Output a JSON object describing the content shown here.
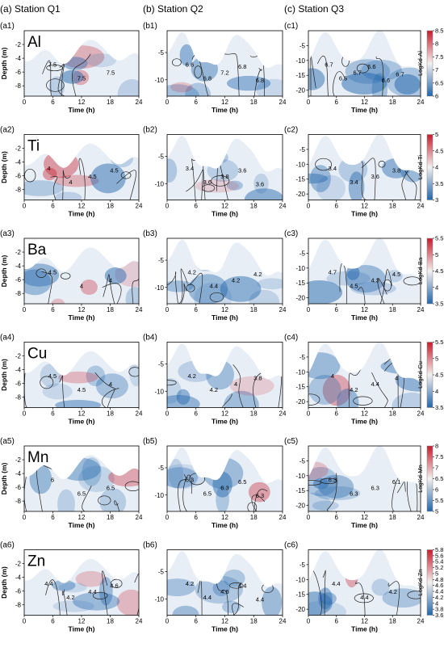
{
  "chart_data": {
    "type": "heatmap",
    "description_of_layout": "6 rows (elements) x 3 columns (stations) of depth-time contour plots",
    "stations": [
      {
        "title": "(a) Station Q1",
        "xlim": [
          0,
          24
        ],
        "ylim": [
          -9.5,
          0
        ],
        "yticks": [
          -2,
          -4,
          -6,
          -8
        ]
      },
      {
        "title": "(b) Station Q2",
        "xlim": [
          0,
          24
        ],
        "ylim": [
          -13,
          -1
        ],
        "yticks": [
          -5,
          -10
        ]
      },
      {
        "title": "(c) Station Q3",
        "xlim": [
          0,
          24
        ],
        "ylim": [
          -22,
          0
        ],
        "yticks": [
          -5,
          -10,
          -15,
          -20
        ]
      }
    ],
    "xticks": [
      0,
      6,
      12,
      18,
      24
    ],
    "xlabel": "Time (h)",
    "ylabel": "Depth (m)",
    "rows": [
      {
        "element": "Al",
        "panel_labels": [
          "(a1)",
          "(b1)",
          "(c1)"
        ],
        "colorbar": {
          "label": "LogKd-Al",
          "min": 6,
          "max": 8.5,
          "ticks": [
            "8.5",
            "8",
            "7.5",
            "7",
            "6.5",
            "6"
          ]
        },
        "contour_labels": [
          [
            "7.5",
            "7.5",
            "7.5"
          ],
          [
            "6.6",
            "6.8",
            "7.2",
            "6.8",
            "6.8"
          ],
          [
            "6.7",
            "6.5",
            "6.7",
            "6.6",
            "6.6",
            "6.7"
          ]
        ]
      },
      {
        "element": "Ti",
        "panel_labels": [
          "(a2)",
          "(b2)",
          "(c2)"
        ],
        "colorbar": {
          "label": "LogKd-Ti",
          "min": 3,
          "max": 5,
          "ticks": [
            "5",
            "4.5",
            "4",
            "3.5",
            "3"
          ]
        },
        "contour_labels": [
          [
            "4",
            "4",
            "4.5",
            "4.5"
          ],
          [
            "3.4",
            "3.6",
            "3.8",
            "3.6",
            "3.6"
          ],
          [
            "3.4",
            "3.4",
            "3.6",
            "3.8"
          ]
        ]
      },
      {
        "element": "Ba",
        "panel_labels": [
          "(a3)",
          "(b3)",
          "(c3)"
        ],
        "colorbar": {
          "label": "LogKd-Ba",
          "min": 3.5,
          "max": 5.5,
          "ticks": [
            "5.5",
            "5",
            "4.5",
            "4",
            "3.5"
          ]
        },
        "contour_labels": [
          [
            "4.5",
            "4",
            "4"
          ],
          [
            "4.2",
            "4.4",
            "4.2",
            "4.2"
          ],
          [
            "4.7",
            "4.5",
            "4.3",
            "4.5"
          ]
        ]
      },
      {
        "element": "Cu",
        "panel_labels": [
          "(a4)",
          "(b4)",
          "(c4)"
        ],
        "colorbar": {
          "label": "LogKd-Cu",
          "min": 3.5,
          "max": 5.5,
          "ticks": [
            "5.5",
            "5",
            "4.5",
            "4",
            "3.5"
          ]
        },
        "contour_labels": [
          [
            "4.5",
            "4.5",
            "4"
          ],
          [
            "4.2",
            "4.2",
            "4",
            "3.8"
          ],
          [
            "4",
            "4.2",
            "4.4",
            "4"
          ]
        ]
      },
      {
        "element": "Mn",
        "panel_labels": [
          "(a5)",
          "(b5)",
          "(c5)"
        ],
        "colorbar": {
          "label": "LogKd-Mn",
          "min": 5,
          "max": 8,
          "ticks": [
            "8",
            "7.5",
            "7",
            "6.5",
            "6",
            "5.5",
            "5"
          ]
        },
        "contour_labels": [
          [
            "6",
            "6.5",
            "6.5"
          ],
          [
            "6.3",
            "6.5",
            "6.3",
            "6.5",
            "6.3"
          ],
          [
            "6.3",
            "6.3",
            "6.3",
            "6.1"
          ]
        ]
      },
      {
        "element": "Zn",
        "panel_labels": [
          "(a6)",
          "(b6)",
          "(c6)"
        ],
        "colorbar": {
          "label": "LogKd-Zn",
          "min": 3.6,
          "max": 5.8,
          "ticks": [
            "5.8",
            "5.6",
            "5.4",
            "5.2",
            "5",
            "4.8",
            "4.6",
            "4.4",
            "4.2",
            "4",
            "3.8",
            "3.6"
          ]
        },
        "contour_labels": [
          [
            "4.4",
            "4.2",
            "4.4",
            "4.6"
          ],
          [
            "4.2",
            "4.4",
            "4.6",
            "4.4",
            "4.4"
          ],
          [
            "4.4",
            "4.4",
            "4.2"
          ]
        ]
      }
    ]
  },
  "colors": {
    "high": "#c81a2a",
    "mid": "#f4f0ef",
    "low": "#2166ac",
    "contour": "#222222"
  },
  "icons": []
}
